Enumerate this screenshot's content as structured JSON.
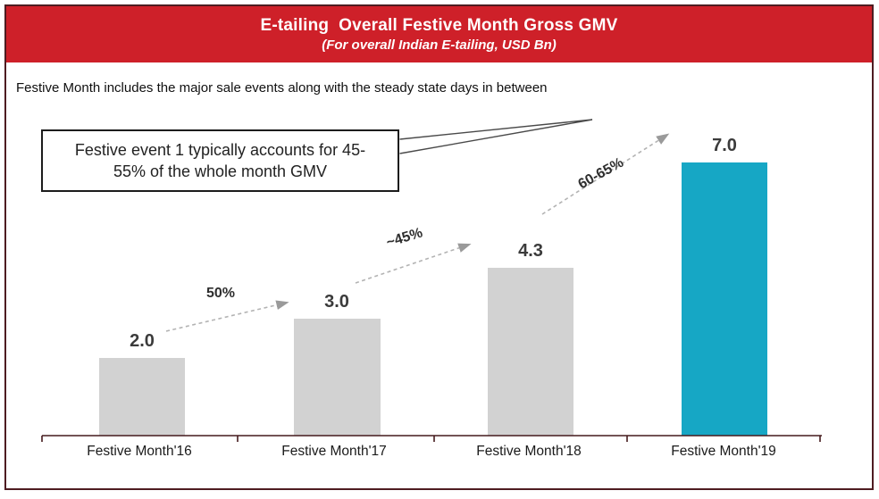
{
  "header": {
    "title": "E-tailing  Overall Festive Month Gross GMV",
    "subtitle": "(For overall Indian E-tailing, USD Bn)",
    "bg_color": "#ce2029"
  },
  "note": "Festive Month includes the major sale events along with the steady state days in between",
  "callout": {
    "text": "Festive event 1 typically accounts for 45-55% of the whole month GMV"
  },
  "chart_data": {
    "type": "bar",
    "title": "E-tailing Overall Festive Month Gross GMV",
    "subtitle": "(For overall Indian E-tailing, USD Bn)",
    "unit": "USD Bn",
    "categories": [
      "Festive Month'16",
      "Festive Month'17",
      "Festive Month'18",
      "Festive Month'19"
    ],
    "values": [
      2.0,
      3.0,
      4.3,
      7.0
    ],
    "value_labels": [
      "2.0",
      "3.0",
      "4.3",
      "7.0"
    ],
    "growth_labels": [
      "50%",
      "~45%",
      "60-65%"
    ],
    "bar_colors": [
      "#d2d2d2",
      "#d2d2d2",
      "#d2d2d2",
      "#16a7c5"
    ],
    "highlight_index": 3,
    "highlight_color": "#16a7c5",
    "base_color": "#d2d2d2",
    "xlabel": "",
    "ylabel": "",
    "ylim": [
      0,
      7.5
    ],
    "grid": false,
    "legend": false
  }
}
